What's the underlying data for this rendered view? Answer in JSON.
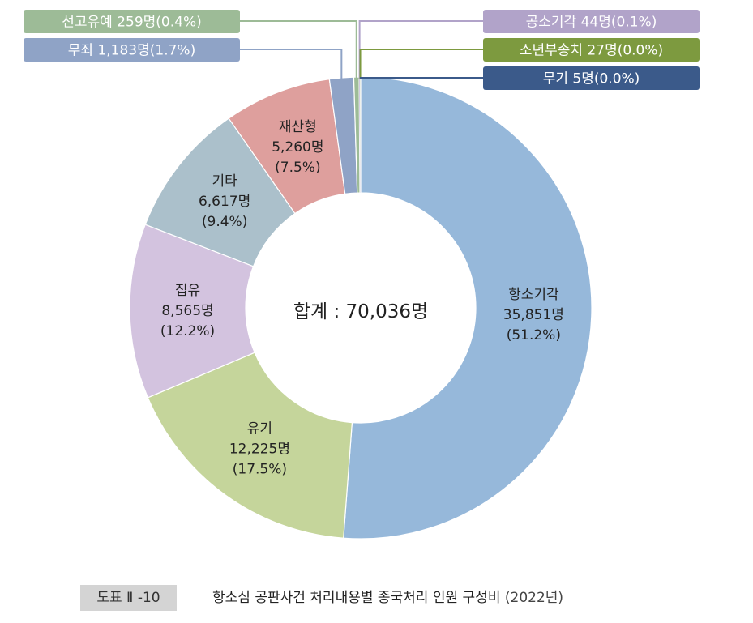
{
  "chart_data": {
    "type": "pie",
    "center_label": "합계 : 70,036명",
    "slices": [
      {
        "name": "항소기각",
        "count": "35,851명",
        "pct_label": "(51.2%)",
        "value": 35851,
        "percent": 51.2,
        "color": "#96b8da",
        "label_style": "inside"
      },
      {
        "name": "유기",
        "count": "12,225명",
        "pct_label": "(17.5%)",
        "value": 12225,
        "percent": 17.5,
        "color": "#c5d59b",
        "label_style": "inside"
      },
      {
        "name": "집유",
        "count": "8,565명",
        "pct_label": "(12.2%)",
        "value": 8565,
        "percent": 12.2,
        "color": "#d3c3df",
        "label_style": "inside"
      },
      {
        "name": "기타",
        "count": "6,617명",
        "pct_label": "(9.4%)",
        "value": 6617,
        "percent": 9.4,
        "color": "#abc0cb",
        "label_style": "inside"
      },
      {
        "name": "재산형",
        "count": "5,260명",
        "pct_label": "(7.5%)",
        "value": 5260,
        "percent": 7.5,
        "color": "#de9f9d",
        "label_style": "inside"
      },
      {
        "name": "무죄",
        "text": "무죄 1,183명(1.7%)",
        "value": 1183,
        "percent": 1.7,
        "color": "#8fa3c6",
        "label_style": "callout"
      },
      {
        "name": "선고유예",
        "text": "선고유예 259명(0.4%)",
        "value": 259,
        "percent": 0.4,
        "color": "#9dbb97",
        "label_style": "callout"
      },
      {
        "name": "공소기각",
        "text": "공소기각 44명(0.1%)",
        "value": 44,
        "percent": 0.1,
        "color": "#b1a3c9",
        "label_style": "callout"
      },
      {
        "name": "소년부송치",
        "text": "소년부송치 27명(0.0%)",
        "value": 27,
        "percent": 0.0,
        "color": "#7d9a3f",
        "label_style": "callout"
      },
      {
        "name": "무기",
        "text": "무기 5명(0.0%)",
        "value": 5,
        "percent": 0.0,
        "color": "#3b5a8a",
        "label_style": "callout"
      }
    ]
  },
  "caption": {
    "tag": "도표 Ⅱ -10",
    "title": "항소심 공판사건 처리내용별 종국처리 인원 구성비",
    "year": "(2022년)"
  }
}
